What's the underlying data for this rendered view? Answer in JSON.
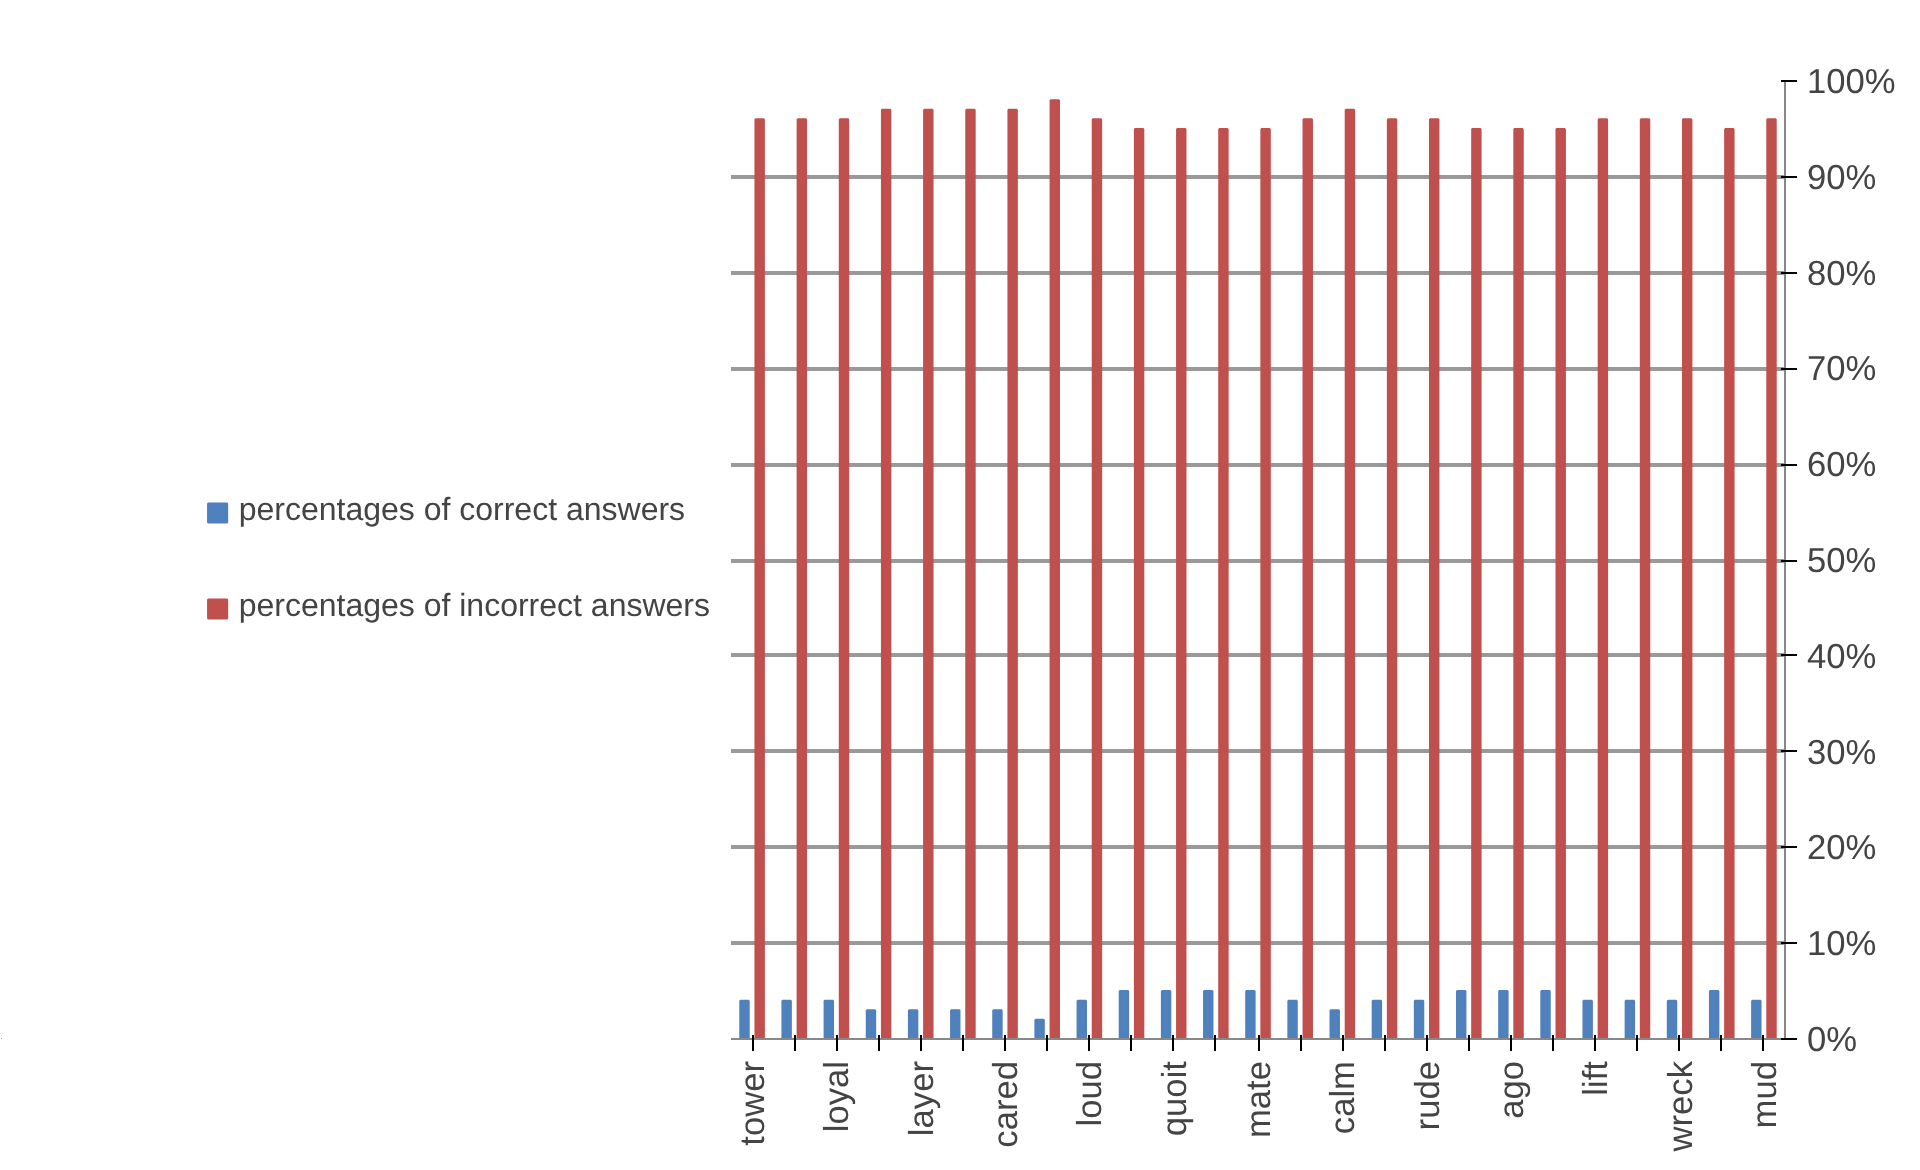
{
  "chart_data": {
    "type": "bar",
    "categories": [
      "tower",
      null,
      "loyal",
      null,
      "layer",
      null,
      "cared",
      null,
      "loud",
      null,
      "quoit",
      null,
      "mate",
      null,
      "calm",
      null,
      "rude",
      null,
      "ago",
      null,
      "lift",
      null,
      "wreck",
      null,
      "mud"
    ],
    "series": [
      {
        "name": "percentages of correct answers",
        "color": "#4f81bd",
        "values": [
          4,
          4,
          4,
          3,
          3,
          3,
          3,
          2,
          4,
          5,
          5,
          5,
          5,
          4,
          3,
          4,
          4,
          5,
          5,
          5,
          4,
          4,
          4,
          5,
          4
        ]
      },
      {
        "name": "percentages of incorrect answers",
        "color": "#c0504d",
        "values": [
          96,
          96,
          96,
          97,
          97,
          97,
          97,
          98,
          96,
          95,
          95,
          95,
          95,
          96,
          97,
          96,
          96,
          95,
          95,
          95,
          96,
          96,
          96,
          95,
          96
        ]
      }
    ],
    "ylim": [
      0,
      100
    ],
    "yticks": [
      {
        "value": 0,
        "label": "0%"
      },
      {
        "value": 10,
        "label": "10%"
      },
      {
        "value": 20,
        "label": "20%"
      },
      {
        "value": 30,
        "label": "30%"
      },
      {
        "value": 40,
        "label": "40%"
      },
      {
        "value": 50,
        "label": "50%"
      },
      {
        "value": 60,
        "label": "60%"
      },
      {
        "value": 70,
        "label": "70%"
      },
      {
        "value": 80,
        "label": "80%"
      },
      {
        "value": 90,
        "label": "90%"
      },
      {
        "value": 100,
        "label": "100%"
      }
    ],
    "grid": "y",
    "legend": "left"
  }
}
